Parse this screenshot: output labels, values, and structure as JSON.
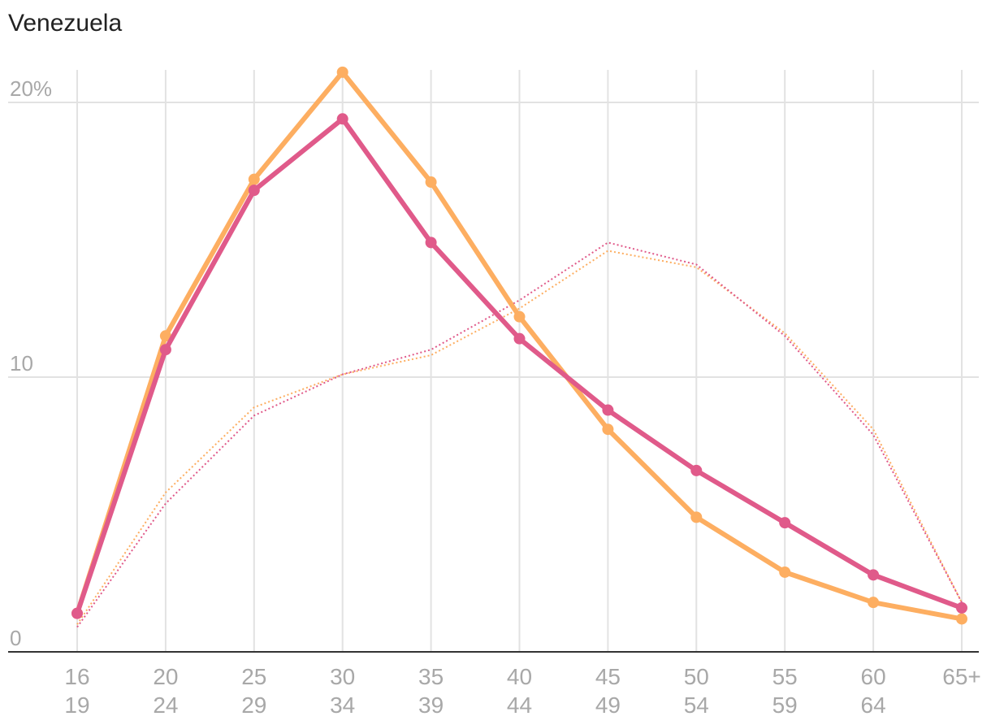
{
  "chart_data": {
    "type": "line",
    "title": "Venezuela",
    "xlabel": "",
    "ylabel": "",
    "ylim": [
      0,
      21
    ],
    "y_ticks": [
      {
        "value": 0,
        "label": "0"
      },
      {
        "value": 10,
        "label": "10"
      },
      {
        "value": 20,
        "label": "20%"
      }
    ],
    "categories": [
      {
        "top": "16",
        "bottom": "19"
      },
      {
        "top": "20",
        "bottom": "24"
      },
      {
        "top": "25",
        "bottom": "29"
      },
      {
        "top": "30",
        "bottom": "34"
      },
      {
        "top": "35",
        "bottom": "39"
      },
      {
        "top": "40",
        "bottom": "44"
      },
      {
        "top": "45",
        "bottom": "49"
      },
      {
        "top": "50",
        "bottom": "54"
      },
      {
        "top": "55",
        "bottom": "59"
      },
      {
        "top": "60",
        "bottom": "64"
      },
      {
        "top": "65+",
        "bottom": ""
      }
    ],
    "grid": true,
    "legend": "none",
    "series": [
      {
        "color": "#fdae61",
        "style": "solid-markers",
        "values": [
          1.4,
          11.5,
          17.2,
          21.1,
          17.1,
          12.2,
          8.1,
          4.9,
          2.9,
          1.8,
          1.2
        ]
      },
      {
        "color": "#e05a8a",
        "style": "solid-markers",
        "values": [
          1.4,
          11.0,
          16.8,
          19.4,
          14.9,
          11.4,
          8.8,
          6.6,
          4.7,
          2.8,
          1.6
        ]
      },
      {
        "color": "#fdae61",
        "style": "dotted",
        "values": [
          1.0,
          5.8,
          8.9,
          10.1,
          10.8,
          12.5,
          14.6,
          14.0,
          11.6,
          8.1,
          1.8
        ]
      },
      {
        "color": "#e05a8a",
        "style": "dotted",
        "values": [
          0.9,
          5.4,
          8.6,
          10.1,
          11.0,
          12.8,
          14.9,
          14.1,
          11.5,
          7.9,
          1.8
        ]
      }
    ]
  }
}
